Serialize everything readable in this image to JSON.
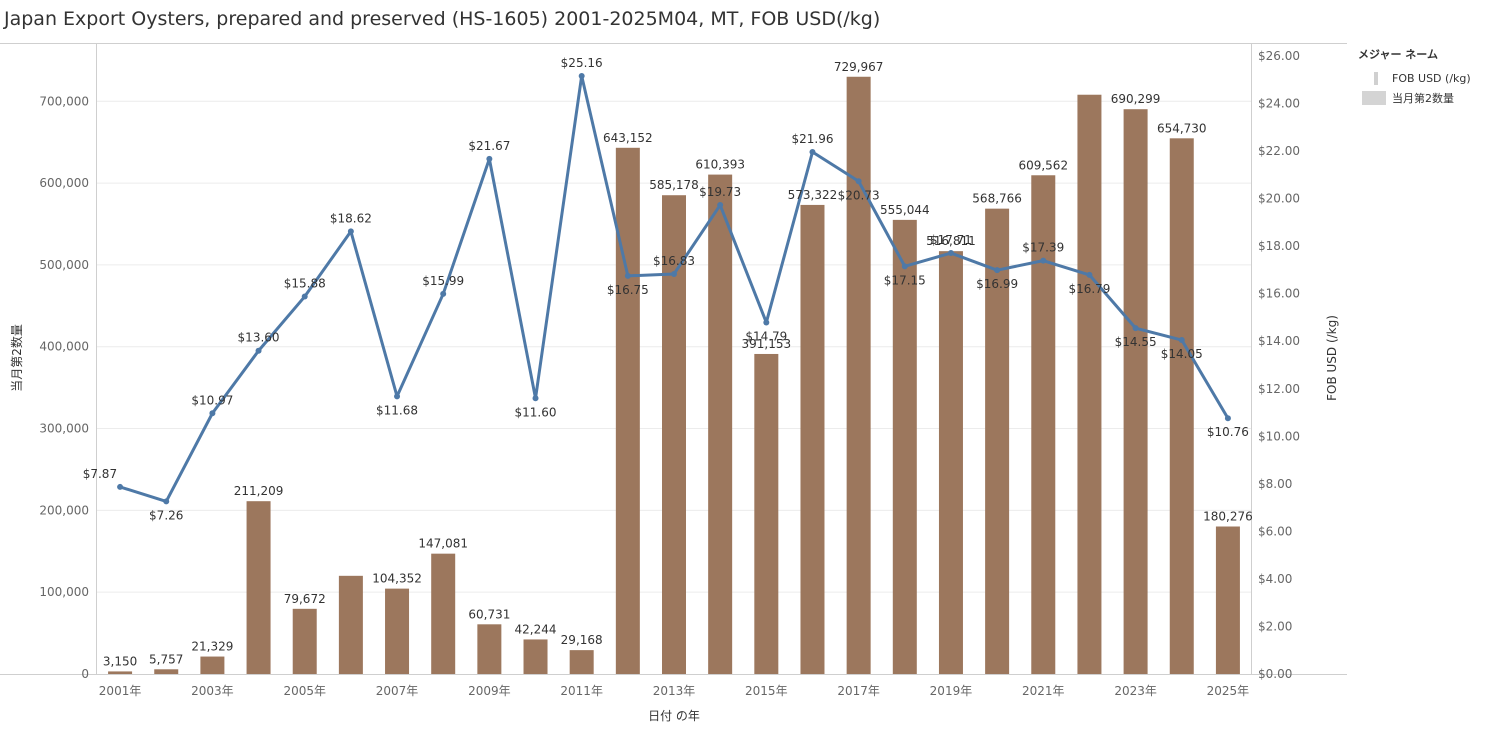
{
  "title": "Japan Export Oysters, prepared and preserved (HS-1605) 2001-2025M04, MT, FOB USD(/kg)",
  "legend": {
    "title": "メジャー ネーム",
    "items": [
      {
        "label": "FOB USD (/kg)",
        "color": "#d0d0d0"
      },
      {
        "label": "当月第2数量",
        "color": "#d4d4d4"
      }
    ]
  },
  "colors": {
    "bar": "#9c775d",
    "line": "#4e79a7"
  },
  "chart_data": {
    "type": "bar",
    "categories": [
      "2001年",
      "2002年",
      "2003年",
      "2004年",
      "2005年",
      "2006年",
      "2007年",
      "2008年",
      "2009年",
      "2010年",
      "2011年",
      "2012年",
      "2013年",
      "2014年",
      "2015年",
      "2016年",
      "2017年",
      "2018年",
      "2019年",
      "2020年",
      "2021年",
      "2022年",
      "2023年",
      "2024年",
      "2025年"
    ],
    "x_tick_labels": [
      "2001年",
      "2003年",
      "2005年",
      "2007年",
      "2009年",
      "2011年",
      "2013年",
      "2015年",
      "2017年",
      "2019年",
      "2021年",
      "2023年",
      "2025年"
    ],
    "xlabel": "日付 の年",
    "ylabel": "当月第2数量",
    "y2label": "FOB USD (/kg)",
    "ylim": [
      0,
      770000
    ],
    "y2lim": [
      0,
      26
    ],
    "y_ticks": [
      0,
      100000,
      200000,
      300000,
      400000,
      500000,
      600000,
      700000
    ],
    "y_tick_labels": [
      "0",
      "100,000",
      "200,000",
      "300,000",
      "400,000",
      "500,000",
      "600,000",
      "700,000"
    ],
    "y2_ticks": [
      0,
      2,
      4,
      6,
      8,
      10,
      12,
      14,
      16,
      18,
      20,
      22,
      24,
      26
    ],
    "y2_tick_labels": [
      "$0.00",
      "$2.00",
      "$4.00",
      "$6.00",
      "$8.00",
      "$10.00",
      "$12.00",
      "$14.00",
      "$16.00",
      "$18.00",
      "$20.00",
      "$22.00",
      "$24.00",
      "$26.00"
    ],
    "legend_position": "right",
    "series": [
      {
        "name": "当月第2数量",
        "type": "bar",
        "axis": "left",
        "values": [
          3150,
          5757,
          21329,
          211209,
          79672,
          120000,
          104352,
          147081,
          60731,
          42244,
          29168,
          643152,
          585178,
          610393,
          391153,
          573322,
          729967,
          555044,
          516811,
          568766,
          609562,
          708000,
          690299,
          654730,
          180276
        ],
        "labels": [
          "3,150",
          "5,757",
          "21,329",
          "211,209",
          "79,672",
          "",
          "104,352",
          "147,081",
          "60,731",
          "42,244",
          "29,168",
          "643,152",
          "585,178",
          "610,393",
          "391,153",
          "573,322",
          "729,967",
          "555,044",
          "516,811",
          "568,766",
          "609,562",
          "",
          "690,299",
          "654,730",
          "180,276"
        ]
      },
      {
        "name": "FOB USD (/kg)",
        "type": "line",
        "axis": "right",
        "values": [
          7.87,
          7.26,
          10.97,
          13.6,
          15.88,
          18.62,
          11.68,
          15.99,
          21.67,
          11.6,
          25.16,
          16.75,
          16.83,
          19.73,
          14.79,
          21.96,
          20.73,
          17.15,
          17.71,
          16.99,
          17.39,
          16.79,
          14.55,
          14.05,
          10.76
        ],
        "labels": [
          "$7.87",
          "$7.26",
          "$10.97",
          "$13.60",
          "$15.88",
          "$18.62",
          "$11.68",
          "$15.99",
          "$21.67",
          "$11.60",
          "$25.16",
          "$16.75",
          "$16.83",
          "$19.73",
          "$14.79",
          "$21.96",
          "$20.73",
          "$17.15",
          "$17.71",
          "$16.99",
          "$17.39",
          "$16.79",
          "$14.55",
          "$14.05",
          "$10.76"
        ]
      }
    ]
  }
}
